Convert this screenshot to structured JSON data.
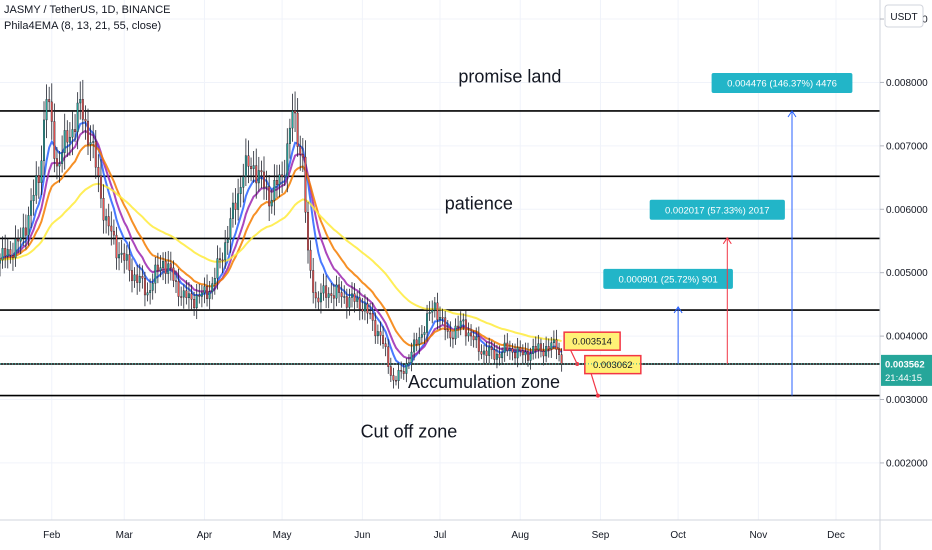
{
  "header": {
    "symbol": "JASMY / TetherUS, 1D, BINANCE",
    "indicator": "Phila4EMA (8, 13, 21, 55, close)"
  },
  "currency_badge": "USDT",
  "last_price": {
    "value": "0.003562",
    "countdown": "21:44:15"
  },
  "chart_data": {
    "type": "candlestick",
    "x_axis": {
      "type": "date",
      "range": [
        "2022-01-12",
        "2022-12-18"
      ],
      "ticks": [
        "Feb",
        "Mar",
        "Apr",
        "May",
        "Jun",
        "Jul",
        "Aug",
        "Sep",
        "Oct",
        "Nov",
        "Dec"
      ]
    },
    "y_axis": {
      "range": [
        0.0011,
        0.0093
      ],
      "ticks": [
        "0.009000",
        "0.008000",
        "0.007000",
        "0.006000",
        "0.005000",
        "0.004000",
        "0.003000",
        "0.002000"
      ]
    },
    "series_path": [
      [
        "2022-01-12",
        0.0052
      ],
      [
        "2022-01-20",
        0.0055
      ],
      [
        "2022-01-27",
        0.0065
      ],
      [
        "2022-01-30",
        0.0078
      ],
      [
        "2022-02-03",
        0.0067
      ],
      [
        "2022-02-08",
        0.0072
      ],
      [
        "2022-02-12",
        0.0076
      ],
      [
        "2022-02-16",
        0.0071
      ],
      [
        "2022-02-22",
        0.0058
      ],
      [
        "2022-02-26",
        0.0054
      ],
      [
        "2022-03-04",
        0.005
      ],
      [
        "2022-03-10",
        0.0047
      ],
      [
        "2022-03-16",
        0.0052
      ],
      [
        "2022-03-24",
        0.0046
      ],
      [
        "2022-03-30",
        0.0046
      ],
      [
        "2022-04-04",
        0.0048
      ],
      [
        "2022-04-10",
        0.0056
      ],
      [
        "2022-04-16",
        0.0066
      ],
      [
        "2022-04-20",
        0.0067
      ],
      [
        "2022-04-26",
        0.0062
      ],
      [
        "2022-05-01",
        0.0065
      ],
      [
        "2022-05-05",
        0.0075
      ],
      [
        "2022-05-09",
        0.0068
      ],
      [
        "2022-05-11",
        0.0052
      ],
      [
        "2022-05-14",
        0.0046
      ],
      [
        "2022-05-20",
        0.0047
      ],
      [
        "2022-05-26",
        0.0046
      ],
      [
        "2022-06-01",
        0.0045
      ],
      [
        "2022-06-08",
        0.004
      ],
      [
        "2022-06-13",
        0.0033
      ],
      [
        "2022-06-16",
        0.0034
      ],
      [
        "2022-06-22",
        0.0039
      ],
      [
        "2022-06-29",
        0.0045
      ],
      [
        "2022-07-04",
        0.004
      ],
      [
        "2022-07-10",
        0.0042
      ],
      [
        "2022-07-16",
        0.0038
      ],
      [
        "2022-07-22",
        0.0037
      ],
      [
        "2022-07-28",
        0.0038
      ],
      [
        "2022-08-02",
        0.0037
      ],
      [
        "2022-08-08",
        0.0038
      ],
      [
        "2022-08-12",
        0.0038
      ],
      [
        "2022-08-15",
        0.0039
      ],
      [
        "2022-08-17",
        0.003562
      ]
    ],
    "ema_colors": [
      "#2962ff",
      "#9c27b0",
      "#f57c00",
      "#ffeb3b"
    ],
    "horizontal_levels": [
      0.00755,
      0.00652,
      0.00554,
      0.00441,
      0.00356,
      0.003062
    ],
    "zone_labels": [
      {
        "text": "promise land",
        "date": "2022-07-28",
        "price": 0.008
      },
      {
        "text": "patience",
        "date": "2022-07-16",
        "price": 0.006
      },
      {
        "text": "Accumulation zone",
        "date": "2022-07-18",
        "price": 0.00318
      },
      {
        "text": "Cut off zone",
        "date": "2022-06-19",
        "price": 0.0024
      }
    ],
    "price_labels": [
      {
        "text": "0.003514",
        "date": "2022-08-28",
        "price": 0.00392
      },
      {
        "text": "0.003062",
        "date": "2022-09-05",
        "price": 0.00355
      }
    ],
    "measurements": [
      {
        "text": "0.000901 (25.72%) 901",
        "date": "2022-10-01",
        "from": 0.00356,
        "to": 0.00446
      },
      {
        "text": "0.002017 (57.33%) 2017",
        "date": "2022-10-20",
        "from": 0.00356,
        "to": 0.00555
      },
      {
        "text": "0.004476 (146.37%) 4476",
        "date": "2022-11-14",
        "from": 0.003062,
        "to": 0.00755
      }
    ]
  }
}
